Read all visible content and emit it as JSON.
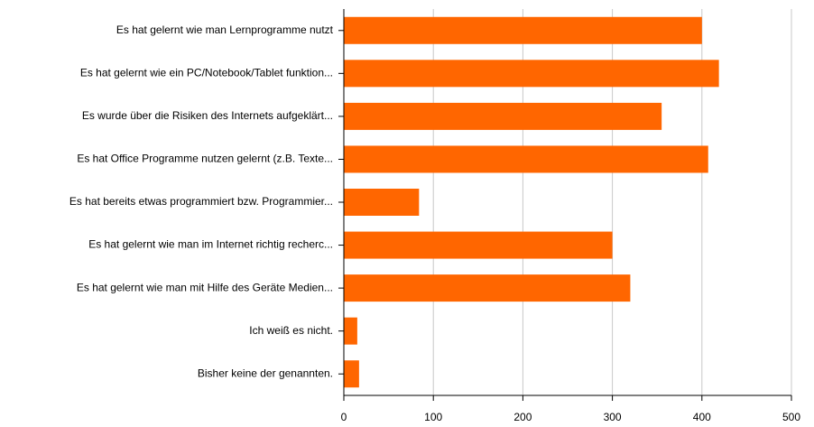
{
  "chart_data": {
    "type": "bar",
    "orientation": "horizontal",
    "categories": [
      "Es hat gelernt wie man Lernprogramme nutzt",
      "Es hat gelernt wie ein PC/Notebook/Tablet funktion...",
      "Es wurde über die Risiken des Internets aufgeklärt...",
      "Es hat Office Programme nutzen gelernt (z.B. Texte...",
      "Es hat bereits etwas programmiert bzw. Programmier...",
      "Es hat gelernt wie man im Internet richtig recherc...",
      "Es hat gelernt wie man mit Hilfe des Geräte Medien...",
      "Ich weiß es nicht.",
      "Bisher keine der genannten."
    ],
    "values": [
      400,
      419,
      355,
      407,
      84,
      300,
      320,
      15,
      17
    ],
    "color": "#ff6600",
    "xlim": [
      0,
      500
    ],
    "xticks": [
      0,
      100,
      200,
      300,
      400,
      500
    ],
    "grid": true
  }
}
